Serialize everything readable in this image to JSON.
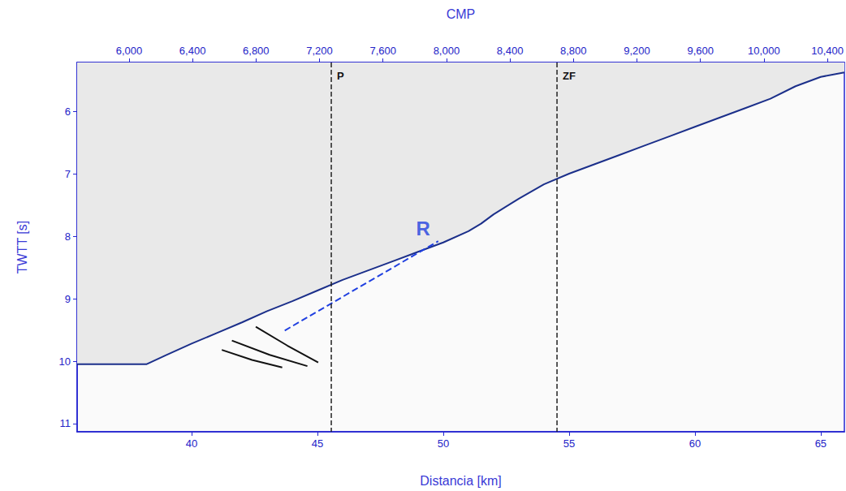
{
  "chart_data": {
    "type": "line",
    "x_label": "Distancia [km]",
    "y_label": "TWTT [s]",
    "x2_label": "CMP",
    "xlim": [
      35.45,
      65.94
    ],
    "xticks": [
      40,
      45,
      50,
      55,
      60,
      65
    ],
    "x2lim": [
      5673,
      10507
    ],
    "x2ticks": [
      6000,
      6400,
      6800,
      7200,
      7600,
      8000,
      8400,
      8800,
      9200,
      9600,
      10000,
      10400
    ],
    "ylim": [
      5.22,
      11.13
    ],
    "yticks": [
      6,
      7,
      8,
      9,
      10,
      11
    ],
    "series": [
      {
        "type": "area",
        "color": "#1b2f8a",
        "line_style": "solid",
        "x": [
          35.45,
          37,
          38.2,
          39,
          40,
          41,
          42,
          43,
          44,
          45,
          46,
          47,
          48,
          49,
          50,
          51,
          51.5,
          52,
          53,
          54,
          55,
          56,
          57,
          58,
          59,
          60,
          61,
          62,
          63,
          64,
          65,
          65.94
        ],
        "values": [
          10.05,
          10.05,
          10.05,
          9.9,
          9.72,
          9.55,
          9.38,
          9.2,
          9.04,
          8.87,
          8.7,
          8.55,
          8.4,
          8.25,
          8.1,
          7.92,
          7.8,
          7.65,
          7.4,
          7.17,
          7.0,
          6.85,
          6.7,
          6.55,
          6.4,
          6.25,
          6.1,
          5.95,
          5.8,
          5.6,
          5.45,
          5.38
        ]
      },
      {
        "type": "line",
        "color": "#111111",
        "line_style": "solid",
        "x": [
          42.55,
          43.8,
          45.03
        ],
        "values": [
          9.45,
          9.75,
          10.02
        ]
      },
      {
        "type": "line",
        "color": "#111111",
        "line_style": "solid",
        "x": [
          41.6,
          43.1,
          44.6
        ],
        "values": [
          9.67,
          9.9,
          10.08
        ]
      },
      {
        "type": "line",
        "color": "#111111",
        "line_style": "solid",
        "x": [
          41.2,
          42.4,
          43.6
        ],
        "values": [
          9.82,
          9.98,
          10.1
        ]
      },
      {
        "type": "line",
        "color": "#1f3fe0",
        "line_style": "dashed",
        "x": [
          43.7,
          49.8
        ],
        "values": [
          9.51,
          8.08
        ]
      }
    ],
    "vlines": [
      {
        "label": "P",
        "x": 45.55,
        "color": "#222222",
        "line_style": "dashed"
      },
      {
        "label": "ZF",
        "x": 54.52,
        "color": "#222222",
        "line_style": "dashed"
      }
    ],
    "annotations": [
      {
        "text": "R",
        "x": 49.2,
        "y": 7.87,
        "color": "#1f3fe0"
      }
    ]
  }
}
